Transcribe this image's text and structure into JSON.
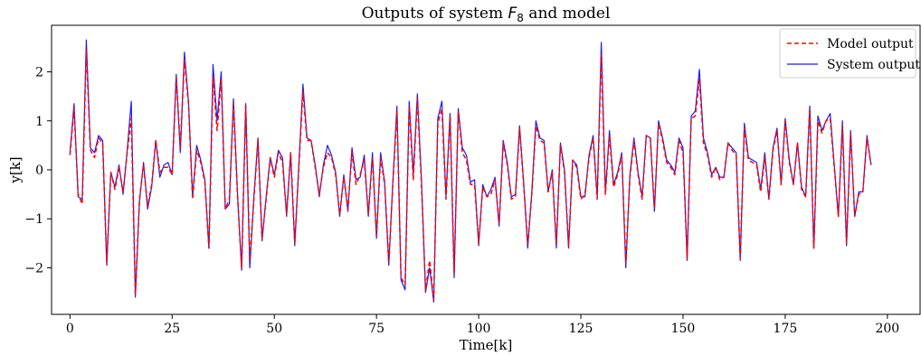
{
  "chart_data": {
    "type": "line",
    "title_prefix": "Outputs of system ",
    "title_var": "F",
    "title_sub": "8",
    "title_suffix": " and model",
    "xlabel": "Time[k]",
    "ylabel": "y[k]",
    "xlim": [
      -4.5,
      208
    ],
    "ylim": [
      -2.95,
      2.95
    ],
    "xticks": [
      0,
      25,
      50,
      75,
      100,
      125,
      150,
      175,
      200
    ],
    "yticks": [
      -2,
      -1,
      0,
      1,
      2
    ],
    "grid": false,
    "legend_position": "top-right",
    "series": [
      {
        "name": "Model output",
        "color": "#ff0000",
        "style": "dashed",
        "values": [
          0.3,
          1.25,
          -0.5,
          -0.7,
          2.45,
          0.4,
          0.25,
          0.65,
          0.55,
          -1.9,
          -0.05,
          -0.4,
          0.05,
          -0.45,
          0.35,
          1.05,
          -2.55,
          -0.6,
          0.1,
          -0.75,
          -0.3,
          0.6,
          -0.05,
          0.05,
          0.05,
          -0.1,
          1.9,
          0.45,
          2.25,
          1.35,
          -0.6,
          0.4,
          0.15,
          -0.25,
          -1.6,
          1.9,
          0.8,
          1.85,
          -0.8,
          -0.6,
          1.35,
          -0.55,
          -2.0,
          1.3,
          -1.85,
          -0.6,
          0.6,
          -1.4,
          -0.6,
          0.25,
          -0.15,
          0.35,
          0.15,
          -0.9,
          0.35,
          -1.5,
          0.05,
          1.6,
          0.6,
          0.6,
          0.05,
          -0.5,
          0.05,
          0.35,
          0.25,
          -0.1,
          -0.9,
          -0.15,
          -0.8,
          0.35,
          -0.3,
          -0.1,
          0.2,
          -0.9,
          0.25,
          -1.35,
          0.25,
          -0.3,
          -1.9,
          -0.3,
          1.2,
          -2.2,
          -2.35,
          1.3,
          -0.2,
          1.45,
          -0.3,
          -2.45,
          -1.85,
          -2.65,
          0.95,
          1.25,
          -0.6,
          1.1,
          -2.1,
          1.2,
          0.35,
          0.2,
          -0.3,
          -0.3,
          -1.5,
          -0.35,
          -0.55,
          -0.5,
          -0.2,
          -1.1,
          0.55,
          0.1,
          -0.6,
          -0.55,
          0.85,
          -0.3,
          -1.5,
          -0.5,
          0.9,
          0.6,
          0.55,
          -0.45,
          -0.05,
          -1.5,
          0.5,
          -0.05,
          -1.55,
          0.2,
          0.05,
          -0.6,
          -0.5,
          0.25,
          0.65,
          -0.6,
          2.35,
          -0.5,
          0.7,
          -0.35,
          -0.1,
          0.3,
          -1.9,
          -0.15,
          0.6,
          -0.1,
          -0.6,
          0.7,
          0.65,
          -0.8,
          0.95,
          0.6,
          0.15,
          0.05,
          -0.1,
          0.6,
          0.35,
          -1.8,
          1.05,
          1.1,
          1.85,
          0.55,
          0.3,
          -0.15,
          0.05,
          -0.2,
          -0.15,
          0.55,
          0.4,
          0.3,
          -1.8,
          0.85,
          0.2,
          0.15,
          0.1,
          -0.45,
          0.25,
          -0.6,
          0.4,
          0.8,
          -0.3,
          1.0,
          0.15,
          -0.3,
          0.55,
          -0.4,
          -0.55,
          1.25,
          -1.6,
          1.0,
          0.75,
          1.0,
          1.05,
          0.05,
          -0.95,
          0.9,
          -1.5,
          0.75,
          -0.95,
          -0.5,
          -0.45,
          0.65,
          0.1
        ]
      },
      {
        "name": "System output",
        "color": "#1a1aff",
        "style": "solid",
        "values": [
          0.35,
          1.35,
          -0.55,
          -0.6,
          2.65,
          0.45,
          0.35,
          0.7,
          0.6,
          -1.95,
          -0.05,
          -0.35,
          0.1,
          -0.5,
          0.4,
          1.4,
          -2.6,
          -0.65,
          0.15,
          -0.8,
          -0.35,
          0.6,
          -0.15,
          0.1,
          0.15,
          -0.1,
          1.95,
          0.35,
          2.4,
          1.4,
          -0.55,
          0.5,
          0.2,
          -0.2,
          -1.6,
          2.15,
          1.0,
          2.0,
          -0.8,
          -0.7,
          1.45,
          -0.5,
          -2.05,
          1.35,
          -2.0,
          -0.55,
          0.65,
          -1.45,
          -0.55,
          0.25,
          -0.1,
          0.4,
          0.25,
          -0.95,
          0.35,
          -1.55,
          0.1,
          1.75,
          0.65,
          0.6,
          0.1,
          -0.55,
          0.1,
          0.5,
          0.3,
          -0.05,
          -0.95,
          -0.1,
          -0.85,
          0.45,
          -0.2,
          -0.15,
          0.3,
          -0.95,
          0.35,
          -1.4,
          0.35,
          -0.25,
          -1.95,
          -0.25,
          1.3,
          -2.25,
          -2.45,
          1.4,
          -0.1,
          1.55,
          -0.2,
          -2.5,
          -2.0,
          -2.7,
          1.05,
          1.4,
          -0.55,
          1.15,
          -2.2,
          1.25,
          0.45,
          0.3,
          -0.25,
          -0.2,
          -1.55,
          -0.3,
          -0.55,
          -0.4,
          -0.15,
          -1.15,
          0.6,
          0.15,
          -0.55,
          -0.5,
          0.9,
          -0.25,
          -1.6,
          -0.45,
          1.0,
          0.65,
          0.6,
          -0.45,
          0.0,
          -1.6,
          0.55,
          0.0,
          -1.6,
          0.2,
          0.1,
          -0.55,
          -0.55,
          0.3,
          0.7,
          -0.55,
          2.6,
          -0.45,
          0.8,
          -0.3,
          -0.05,
          0.35,
          -2.0,
          -0.1,
          0.65,
          -0.05,
          -0.55,
          0.7,
          0.65,
          -0.85,
          1.0,
          0.65,
          0.2,
          0.1,
          -0.05,
          0.65,
          0.45,
          -1.85,
          1.1,
          1.2,
          2.05,
          0.65,
          0.35,
          -0.1,
          0.05,
          -0.15,
          -0.15,
          0.55,
          0.45,
          0.35,
          -1.85,
          0.95,
          0.25,
          0.2,
          0.15,
          -0.4,
          0.35,
          -0.6,
          0.45,
          0.85,
          -0.3,
          1.05,
          0.2,
          -0.3,
          0.55,
          -0.35,
          -0.55,
          1.3,
          -1.6,
          1.1,
          0.8,
          1.0,
          1.15,
          0.1,
          -0.95,
          1.0,
          -1.55,
          0.8,
          -0.95,
          -0.45,
          -0.45,
          0.7,
          0.1
        ]
      }
    ]
  }
}
